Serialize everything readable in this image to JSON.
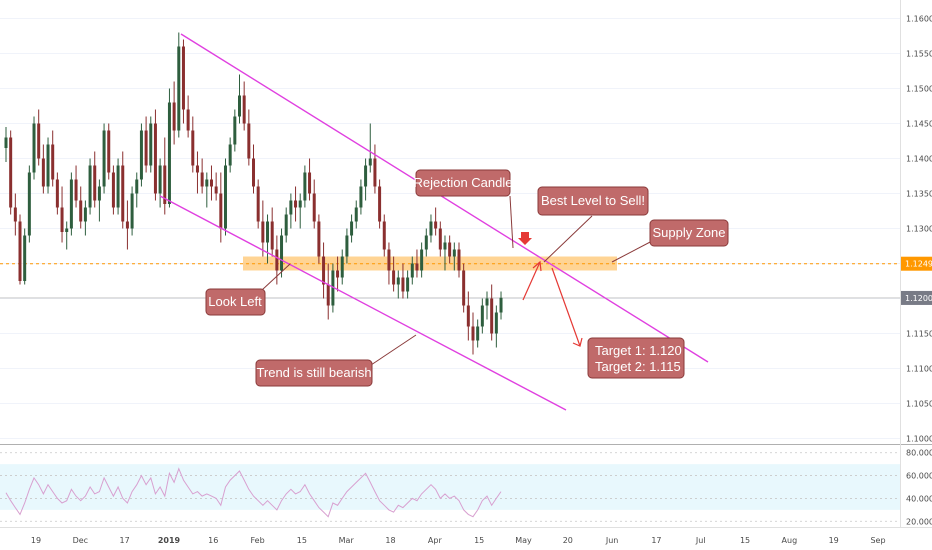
{
  "chart_data": {
    "type": "candlestick",
    "symbol_pair_unprinted": "",
    "price_axis": {
      "ticks": [
        "1.16000",
        "1.15500",
        "1.15000",
        "1.14500",
        "1.14000",
        "1.13500",
        "1.13000",
        "1.12500",
        "1.12000",
        "1.11500",
        "1.11000",
        "1.10500",
        "1.10000"
      ],
      "ylim": [
        1.0995,
        1.1615
      ],
      "badges": [
        {
          "label": "1.12497",
          "value": 1.12497,
          "color": "#ff9800"
        },
        {
          "label": "1.12008",
          "value": 1.12008,
          "color": "#787b86"
        }
      ]
    },
    "time_axis": {
      "labels": [
        "19",
        "Dec",
        "17",
        "2019",
        "16",
        "Feb",
        "15",
        "Mar",
        "18",
        "Apr",
        "15",
        "May",
        "20",
        "Jun",
        "17",
        "Jul",
        "15",
        "Aug",
        "19",
        "Sep"
      ],
      "bold_label": "2019"
    },
    "ohlc": [
      [
        1.1415,
        1.1445,
        1.1395,
        1.143
      ],
      [
        1.143,
        1.144,
        1.132,
        1.133
      ],
      [
        1.133,
        1.135,
        1.129,
        1.131
      ],
      [
        1.131,
        1.132,
        1.122,
        1.1225
      ],
      [
        1.1225,
        1.13,
        1.122,
        1.129
      ],
      [
        1.129,
        1.139,
        1.128,
        1.138
      ],
      [
        1.138,
        1.146,
        1.137,
        1.145
      ],
      [
        1.145,
        1.147,
        1.139,
        1.14
      ],
      [
        1.14,
        1.142,
        1.135,
        1.136
      ],
      [
        1.136,
        1.143,
        1.135,
        1.142
      ],
      [
        1.142,
        1.144,
        1.136,
        1.137
      ],
      [
        1.137,
        1.138,
        1.132,
        1.133
      ],
      [
        1.133,
        1.136,
        1.128,
        1.1295
      ],
      [
        1.1295,
        1.131,
        1.127,
        1.13
      ],
      [
        1.13,
        1.138,
        1.129,
        1.137
      ],
      [
        1.137,
        1.139,
        1.133,
        1.134
      ],
      [
        1.134,
        1.136,
        1.13,
        1.131
      ],
      [
        1.131,
        1.134,
        1.129,
        1.133
      ],
      [
        1.133,
        1.14,
        1.132,
        1.139
      ],
      [
        1.139,
        1.141,
        1.133,
        1.134
      ],
      [
        1.134,
        1.137,
        1.131,
        1.136
      ],
      [
        1.136,
        1.145,
        1.135,
        1.144
      ],
      [
        1.144,
        1.145,
        1.137,
        1.138
      ],
      [
        1.138,
        1.139,
        1.132,
        1.133
      ],
      [
        1.133,
        1.14,
        1.132,
        1.139
      ],
      [
        1.139,
        1.141,
        1.13,
        1.131
      ],
      [
        1.131,
        1.134,
        1.127,
        1.13
      ],
      [
        1.13,
        1.136,
        1.129,
        1.135
      ],
      [
        1.135,
        1.138,
        1.133,
        1.137
      ],
      [
        1.137,
        1.145,
        1.136,
        1.144
      ],
      [
        1.144,
        1.146,
        1.138,
        1.139
      ],
      [
        1.139,
        1.146,
        1.138,
        1.145
      ],
      [
        1.145,
        1.147,
        1.134,
        1.135
      ],
      [
        1.135,
        1.14,
        1.133,
        1.139
      ],
      [
        1.139,
        1.143,
        1.132,
        1.1335
      ],
      [
        1.1335,
        1.15,
        1.133,
        1.148
      ],
      [
        1.148,
        1.151,
        1.142,
        1.144
      ],
      [
        1.144,
        1.158,
        1.143,
        1.156
      ],
      [
        1.156,
        1.157,
        1.145,
        1.147
      ],
      [
        1.147,
        1.149,
        1.143,
        1.144
      ],
      [
        1.144,
        1.146,
        1.138,
        1.139
      ],
      [
        1.139,
        1.141,
        1.135,
        1.138
      ],
      [
        1.138,
        1.14,
        1.135,
        1.136
      ],
      [
        1.136,
        1.138,
        1.133,
        1.137
      ],
      [
        1.137,
        1.139,
        1.134,
        1.136
      ],
      [
        1.136,
        1.138,
        1.134,
        1.135
      ],
      [
        1.135,
        1.138,
        1.128,
        1.13
      ],
      [
        1.13,
        1.14,
        1.129,
        1.139
      ],
      [
        1.139,
        1.143,
        1.138,
        1.142
      ],
      [
        1.142,
        1.147,
        1.141,
        1.146
      ],
      [
        1.146,
        1.152,
        1.145,
        1.149
      ],
      [
        1.149,
        1.151,
        1.144,
        1.145
      ],
      [
        1.145,
        1.147,
        1.139,
        1.14
      ],
      [
        1.14,
        1.142,
        1.135,
        1.136
      ],
      [
        1.136,
        1.137,
        1.13,
        1.131
      ],
      [
        1.131,
        1.134,
        1.126,
        1.128
      ],
      [
        1.128,
        1.132,
        1.125,
        1.131
      ],
      [
        1.131,
        1.133,
        1.126,
        1.127
      ],
      [
        1.127,
        1.129,
        1.122,
        1.124
      ],
      [
        1.124,
        1.13,
        1.123,
        1.129
      ],
      [
        1.129,
        1.133,
        1.128,
        1.132
      ],
      [
        1.132,
        1.135,
        1.13,
        1.134
      ],
      [
        1.134,
        1.136,
        1.131,
        1.133
      ],
      [
        1.133,
        1.135,
        1.13,
        1.134
      ],
      [
        1.134,
        1.139,
        1.133,
        1.138
      ],
      [
        1.138,
        1.14,
        1.134,
        1.135
      ],
      [
        1.135,
        1.137,
        1.13,
        1.131
      ],
      [
        1.131,
        1.132,
        1.125,
        1.126
      ],
      [
        1.126,
        1.128,
        1.12,
        1.122
      ],
      [
        1.122,
        1.125,
        1.117,
        1.119
      ],
      [
        1.119,
        1.125,
        1.118,
        1.124
      ],
      [
        1.124,
        1.126,
        1.121,
        1.123
      ],
      [
        1.123,
        1.127,
        1.122,
        1.126
      ],
      [
        1.126,
        1.13,
        1.125,
        1.129
      ],
      [
        1.129,
        1.132,
        1.128,
        1.131
      ],
      [
        1.131,
        1.134,
        1.13,
        1.133
      ],
      [
        1.133,
        1.137,
        1.132,
        1.136
      ],
      [
        1.136,
        1.14,
        1.134,
        1.139
      ],
      [
        1.139,
        1.145,
        1.138,
        1.14
      ],
      [
        1.14,
        1.142,
        1.135,
        1.136
      ],
      [
        1.136,
        1.137,
        1.13,
        1.131
      ],
      [
        1.131,
        1.132,
        1.126,
        1.127
      ],
      [
        1.127,
        1.128,
        1.122,
        1.124
      ],
      [
        1.124,
        1.126,
        1.121,
        1.122
      ],
      [
        1.122,
        1.124,
        1.12,
        1.123
      ],
      [
        1.123,
        1.125,
        1.12,
        1.121
      ],
      [
        1.121,
        1.124,
        1.12,
        1.123
      ],
      [
        1.123,
        1.126,
        1.122,
        1.125
      ],
      [
        1.125,
        1.127,
        1.123,
        1.124
      ],
      [
        1.124,
        1.128,
        1.123,
        1.127
      ],
      [
        1.127,
        1.13,
        1.126,
        1.129
      ],
      [
        1.129,
        1.132,
        1.128,
        1.131
      ],
      [
        1.131,
        1.133,
        1.129,
        1.13
      ],
      [
        1.13,
        1.131,
        1.126,
        1.127
      ],
      [
        1.127,
        1.129,
        1.124,
        1.128
      ],
      [
        1.128,
        1.129,
        1.125,
        1.126
      ],
      [
        1.126,
        1.128,
        1.124,
        1.127
      ],
      [
        1.127,
        1.128,
        1.123,
        1.124
      ],
      [
        1.124,
        1.125,
        1.118,
        1.119
      ],
      [
        1.119,
        1.121,
        1.114,
        1.116
      ],
      [
        1.116,
        1.118,
        1.112,
        1.114
      ],
      [
        1.114,
        1.117,
        1.113,
        1.116
      ],
      [
        1.116,
        1.12,
        1.115,
        1.119
      ],
      [
        1.119,
        1.121,
        1.117,
        1.12
      ],
      [
        1.12,
        1.122,
        1.114,
        1.115
      ],
      [
        1.115,
        1.119,
        1.113,
        1.118
      ],
      [
        1.118,
        1.121,
        1.117,
        1.1201
      ]
    ],
    "rsi": {
      "ticks": [
        "80.0000",
        "60.0000",
        "40.0000",
        "20.0000"
      ],
      "ylim": [
        15,
        85
      ],
      "band": [
        30,
        70
      ],
      "values": [
        45,
        38,
        32,
        26,
        36,
        48,
        58,
        52,
        44,
        52,
        46,
        40,
        36,
        38,
        48,
        42,
        38,
        42,
        50,
        44,
        46,
        58,
        50,
        42,
        50,
        40,
        36,
        46,
        52,
        60,
        52,
        58,
        44,
        50,
        42,
        62,
        54,
        66,
        56,
        50,
        44,
        46,
        42,
        44,
        42,
        40,
        34,
        50,
        56,
        60,
        64,
        56,
        48,
        42,
        38,
        34,
        38,
        34,
        30,
        38,
        44,
        48,
        44,
        46,
        52,
        44,
        38,
        32,
        28,
        24,
        36,
        34,
        40,
        46,
        50,
        54,
        58,
        62,
        54,
        46,
        38,
        34,
        30,
        28,
        34,
        32,
        36,
        40,
        38,
        44,
        48,
        52,
        48,
        40,
        44,
        40,
        42,
        38,
        30,
        26,
        24,
        30,
        38,
        42,
        34,
        40,
        46
      ]
    },
    "annotations": {
      "rejection": "Rejection Candle",
      "best_level": "Best Level to Sell!",
      "supply_zone": "Supply Zone",
      "look_left": "Look Left",
      "trend": "Trend is still bearish",
      "target1": "Target 1: 1.120",
      "target2": "Target 2: 1.115"
    },
    "supply_zone": [
      1.124,
      1.126
    ],
    "colors": {
      "up": "#2e5e3e",
      "down": "#8a2f2f",
      "channel": "#e040e0",
      "zone": "#ffb74d",
      "callout": "#c06a6a",
      "callout_stroke": "#8a3a3a",
      "arrow": "#e53935",
      "rsi_line": "#d8a0d0",
      "rsi_band": "#e8f8fd",
      "badge_orange": "#ff9800",
      "badge_gray": "#787b86"
    }
  }
}
